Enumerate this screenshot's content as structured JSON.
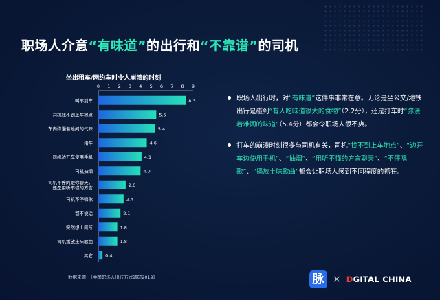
{
  "title": {
    "before": "职场人介意",
    "hl1": "“有味道”",
    "mid": "的出行和",
    "hl2": "“不靠谱”",
    "after": "的司机"
  },
  "chart_data": {
    "type": "bar",
    "orientation": "horizontal",
    "title": "坐出租车/网约车时令人崩溃的时刻",
    "xlim": [
      0,
      9
    ],
    "xticks": [
      "0",
      "1",
      "2",
      "3",
      "4",
      "5",
      "6",
      "7",
      "8",
      "9"
    ],
    "categories": [
      "叫不到车",
      "司机找不到上车地点",
      "车内弥漫着难闻的气味",
      "堵车",
      "司机边开车使用手机",
      "司机抽烟",
      "司机不停的跟你聊天，还是用听不懂的方言",
      "司机不停唱歌",
      "都不说话",
      "突然想上厕所",
      "司机播放土味歌曲",
      "其它"
    ],
    "values": [
      8.3,
      5.5,
      5.4,
      4.6,
      4.1,
      4.0,
      2.6,
      2.4,
      2.1,
      1.8,
      1.8,
      0.4
    ],
    "value_labels": [
      "8.3",
      "5.5",
      "5.4",
      "4.6",
      "4.1",
      "4.0",
      "2.6",
      "2.4",
      "2.1",
      "1.8",
      "1.8",
      "0.4"
    ],
    "colors": {
      "bar_start": "#1e66e0",
      "bar_end": "#25e0b8",
      "axis": "#ffffff"
    }
  },
  "source": "数据来源：《中国职场人出行方式调研2019》",
  "bullets": [
    {
      "parts": [
        {
          "t": "职场人出行时，对",
          "hl": false
        },
        {
          "t": "“有味道”",
          "hl": true
        },
        {
          "t": "这件事非常在意。无论是坐公交/地铁出行是碰到",
          "hl": false
        },
        {
          "t": "“有人吃味道很大的食物”",
          "hl": true
        },
        {
          "t": "（2.2分），还是打车时",
          "hl": false
        },
        {
          "t": "“弥漫着难闻的味道”",
          "hl": true
        },
        {
          "t": "（5.4分）都会令职场人很不爽。",
          "hl": false
        }
      ]
    },
    {
      "parts": [
        {
          "t": "打车的崩溃时刻很多与司机有关，司机",
          "hl": false
        },
        {
          "t": "“找不到上车地点”",
          "hl": true
        },
        {
          "t": "、",
          "hl": false
        },
        {
          "t": "“边开车边使用手机”",
          "hl": true
        },
        {
          "t": "、",
          "hl": false
        },
        {
          "t": "“抽烟”",
          "hl": true
        },
        {
          "t": "、",
          "hl": false
        },
        {
          "t": "“用听不懂的方言聊天”",
          "hl": true
        },
        {
          "t": "、",
          "hl": false
        },
        {
          "t": "“不停唱歌”",
          "hl": true
        },
        {
          "t": "、",
          "hl": false
        },
        {
          "t": "“播放土味歌曲”",
          "hl": true
        },
        {
          "t": "都会让职场人感到不同程度的抓狂。",
          "hl": false
        }
      ]
    }
  ],
  "footer": {
    "mai_char": "脉",
    "times": "×",
    "dc_mark": "D",
    "dc_text": "GITAL CHINA"
  },
  "colors": {
    "accent": "#2ee6b8",
    "background": "#0a1a38"
  }
}
